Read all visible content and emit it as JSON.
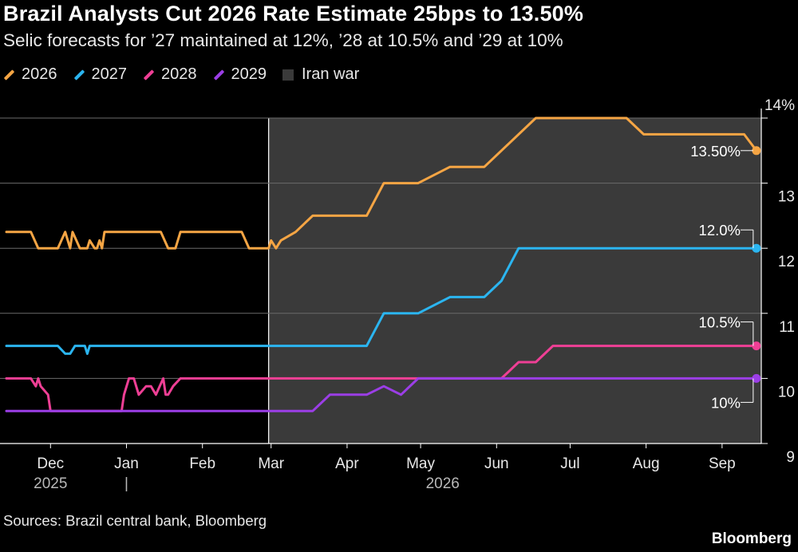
{
  "header": {
    "title": "Brazil Analysts Cut 2026 Rate Estimate 25bps to 13.50%",
    "subtitle": "Selic forecasts for ’27 maintained at 12%, ’28 at 10.5% and ’29 at 10%"
  },
  "legend": {
    "items": [
      {
        "label": "2026",
        "color": "#f5a544"
      },
      {
        "label": "2027",
        "color": "#2bb5f0"
      },
      {
        "label": "2028",
        "color": "#ef3f95"
      },
      {
        "label": "2029",
        "color": "#9b3ee6"
      }
    ],
    "shade_label": "Iran war",
    "shade_color": "#3a3a3a"
  },
  "footer": {
    "source": "Sources: Brazil central bank, Bloomberg",
    "brand": "Bloomberg"
  },
  "chart_data": {
    "type": "line",
    "title": "Brazil Analysts Cut 2026 Rate Estimate 25bps to 13.50%",
    "subtitle": "Selic forecasts for ’27 maintained at 12%, ’28 at 10.5% and ’29 at 10%",
    "xlabel": "",
    "ylabel": "",
    "y_unit": "%",
    "ylim": [
      9,
      14
    ],
    "xlim": [
      "2025-11-13",
      "2026-09-17"
    ],
    "y_ticks": [
      {
        "value": 14,
        "label": "14%"
      },
      {
        "value": 13,
        "label": "13"
      },
      {
        "value": 12,
        "label": "12"
      },
      {
        "value": 11,
        "label": "11"
      },
      {
        "value": 10,
        "label": "10"
      },
      {
        "value": 9,
        "label": "9"
      }
    ],
    "x_ticks": [
      {
        "date": "2025-12-01",
        "label": "Dec"
      },
      {
        "date": "2026-01-01",
        "label": "Jan"
      },
      {
        "date": "2026-02-01",
        "label": "Feb"
      },
      {
        "date": "2026-03-01",
        "label": "Mar"
      },
      {
        "date": "2026-04-01",
        "label": "Apr"
      },
      {
        "date": "2026-05-01",
        "label": "May"
      },
      {
        "date": "2026-06-01",
        "label": "Jun"
      },
      {
        "date": "2026-07-01",
        "label": "Jul"
      },
      {
        "date": "2026-08-01",
        "label": "Aug"
      },
      {
        "date": "2026-09-01",
        "label": "Sep"
      }
    ],
    "year_labels": [
      {
        "label": "2025",
        "date": "2025-12-01"
      },
      {
        "label": "|",
        "date": "2026-01-01"
      },
      {
        "label": "2026",
        "date": "2026-05-10"
      }
    ],
    "grid": true,
    "legend_position": "top-left",
    "shaded_region": {
      "label": "Iran war",
      "start": "2026-02-28",
      "end": "2026-09-17"
    },
    "series": [
      {
        "name": "2026",
        "color": "#f5a544",
        "points": [
          [
            "2025-11-13",
            12.25
          ],
          [
            "2025-11-23",
            12.25
          ],
          [
            "2025-11-26",
            12.0
          ],
          [
            "2025-12-04",
            12.0
          ],
          [
            "2025-12-07",
            12.25
          ],
          [
            "2025-12-09",
            12.0
          ],
          [
            "2025-12-10",
            12.25
          ],
          [
            "2025-12-13",
            12.0
          ],
          [
            "2025-12-16",
            12.0
          ],
          [
            "2025-12-17",
            12.12
          ],
          [
            "2025-12-19",
            12.0
          ],
          [
            "2025-12-20",
            12.0
          ],
          [
            "2025-12-21",
            12.12
          ],
          [
            "2025-12-22",
            12.0
          ],
          [
            "2025-12-23",
            12.25
          ],
          [
            "2026-01-15",
            12.25
          ],
          [
            "2026-01-18",
            12.0
          ],
          [
            "2026-01-21",
            12.0
          ],
          [
            "2026-01-23",
            12.25
          ],
          [
            "2026-02-17",
            12.25
          ],
          [
            "2026-02-20",
            12.0
          ],
          [
            "2026-02-28",
            12.0
          ],
          [
            "2026-03-01",
            12.12
          ],
          [
            "2026-03-03",
            12.0
          ],
          [
            "2026-03-05",
            12.12
          ],
          [
            "2026-03-11",
            12.25
          ],
          [
            "2026-03-18",
            12.5
          ],
          [
            "2026-04-09",
            12.5
          ],
          [
            "2026-04-16",
            13.0
          ],
          [
            "2026-04-30",
            13.0
          ],
          [
            "2026-05-13",
            13.25
          ],
          [
            "2026-05-27",
            13.25
          ],
          [
            "2026-06-17",
            14.0
          ],
          [
            "2026-07-24",
            14.0
          ],
          [
            "2026-07-31",
            13.75
          ],
          [
            "2026-09-10",
            13.75
          ],
          [
            "2026-09-15",
            13.5
          ]
        ],
        "end_value": 13.5,
        "end_label": "13.50%"
      },
      {
        "name": "2027",
        "color": "#2bb5f0",
        "points": [
          [
            "2025-11-13",
            10.5
          ],
          [
            "2025-12-04",
            10.5
          ],
          [
            "2025-12-07",
            10.38
          ],
          [
            "2025-12-09",
            10.38
          ],
          [
            "2025-12-11",
            10.5
          ],
          [
            "2025-12-15",
            10.5
          ],
          [
            "2025-12-16",
            10.38
          ],
          [
            "2025-12-17",
            10.5
          ],
          [
            "2026-04-09",
            10.5
          ],
          [
            "2026-04-16",
            11.0
          ],
          [
            "2026-04-30",
            11.0
          ],
          [
            "2026-05-13",
            11.25
          ],
          [
            "2026-05-27",
            11.25
          ],
          [
            "2026-06-03",
            11.5
          ],
          [
            "2026-06-10",
            12.0
          ],
          [
            "2026-09-15",
            12.0
          ]
        ],
        "end_value": 12.0,
        "end_label": "12.0%"
      },
      {
        "name": "2028",
        "color": "#ef3f95",
        "points": [
          [
            "2025-11-13",
            10.0
          ],
          [
            "2025-11-23",
            10.0
          ],
          [
            "2025-11-25",
            9.88
          ],
          [
            "2025-11-26",
            10.0
          ],
          [
            "2025-11-27",
            9.88
          ],
          [
            "2025-11-30",
            9.75
          ],
          [
            "2025-12-01",
            9.5
          ],
          [
            "2025-12-30",
            9.5
          ],
          [
            "2025-12-31",
            9.75
          ],
          [
            "2026-01-02",
            10.0
          ],
          [
            "2026-01-04",
            10.0
          ],
          [
            "2026-01-06",
            9.75
          ],
          [
            "2026-01-09",
            9.88
          ],
          [
            "2026-01-11",
            9.88
          ],
          [
            "2026-01-13",
            9.75
          ],
          [
            "2026-01-16",
            10.0
          ],
          [
            "2026-01-17",
            9.75
          ],
          [
            "2026-01-18",
            9.75
          ],
          [
            "2026-01-20",
            9.88
          ],
          [
            "2026-01-23",
            10.0
          ],
          [
            "2026-06-03",
            10.0
          ],
          [
            "2026-06-10",
            10.25
          ],
          [
            "2026-06-17",
            10.25
          ],
          [
            "2026-06-24",
            10.5
          ],
          [
            "2026-09-15",
            10.5
          ]
        ],
        "end_value": 10.5,
        "end_label": "10.5%"
      },
      {
        "name": "2029",
        "color": "#9b3ee6",
        "points": [
          [
            "2025-11-13",
            9.5
          ],
          [
            "2026-03-18",
            9.5
          ],
          [
            "2026-03-25",
            9.75
          ],
          [
            "2026-04-09",
            9.75
          ],
          [
            "2026-04-16",
            9.88
          ],
          [
            "2026-04-23",
            9.75
          ],
          [
            "2026-04-30",
            10.0
          ],
          [
            "2026-09-15",
            10.0
          ]
        ],
        "end_value": 10.0,
        "end_label": "10%"
      }
    ]
  }
}
